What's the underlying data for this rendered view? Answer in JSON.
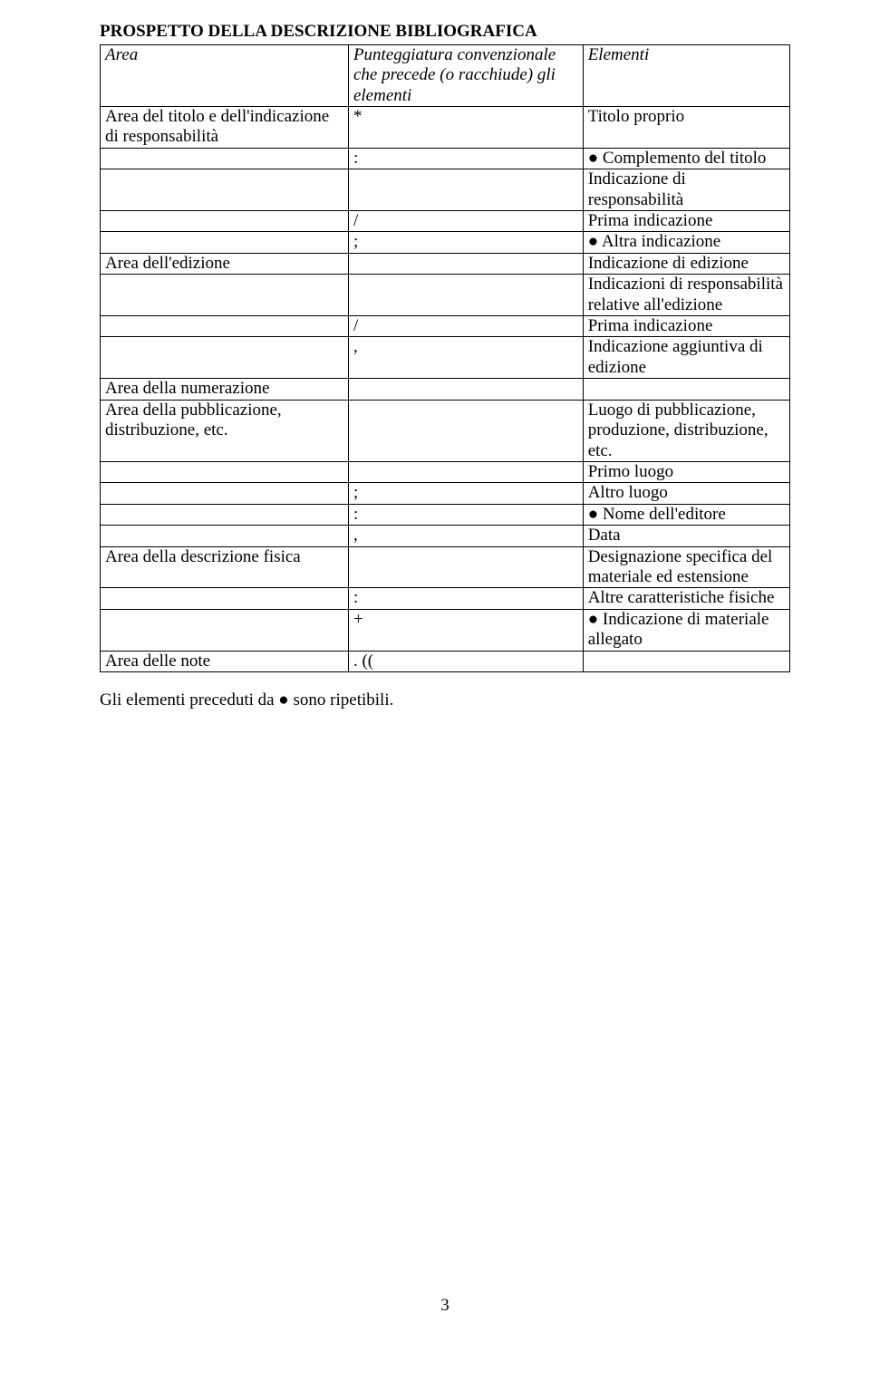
{
  "title": "PROSPETTO DELLA DESCRIZIONE BIBLIOGRAFICA",
  "header": {
    "col0": "Area",
    "col1": "Punteggiatura convenzionale che precede (o racchiude) gli elementi",
    "col2": "Elementi"
  },
  "rows": [
    {
      "c0": "Area del titolo e dell'indicazione di responsabilità",
      "c1": "*",
      "c2": "Titolo proprio"
    },
    {
      "c0": "",
      "c1": ":",
      "c2": "● Complemento del titolo"
    },
    {
      "c0": "",
      "c1": "",
      "c2": "Indicazione di responsabilità"
    },
    {
      "c0": "",
      "c1": "/",
      "c2": "Prima indicazione"
    },
    {
      "c0": "",
      "c1": ";",
      "c2": "● Altra indicazione"
    },
    {
      "c0": "Area dell'edizione",
      "c1": "",
      "c2": "Indicazione di edizione"
    },
    {
      "c0": "",
      "c1": "",
      "c2": "Indicazioni di responsabilità relative all'edizione"
    },
    {
      "c0": "",
      "c1": "/",
      "c2": "Prima indicazione"
    },
    {
      "c0": "",
      "c1": ",",
      "c2": "Indicazione aggiuntiva di edizione"
    },
    {
      "c0": "Area della numerazione",
      "c1": "",
      "c2": ""
    },
    {
      "c0": "Area della pubblicazione, distribuzione, etc.",
      "c1": "",
      "c2": "Luogo di pubblicazione, produzione, distribuzione, etc."
    },
    {
      "c0": "",
      "c1": "",
      "c2": "Primo luogo"
    },
    {
      "c0": "",
      "c1": ";",
      "c2": "Altro luogo"
    },
    {
      "c0": "",
      "c1": ":",
      "c2": "● Nome dell'editore"
    },
    {
      "c0": "",
      "c1": ",",
      "c2": "Data"
    },
    {
      "c0": "Area della descrizione fisica",
      "c1": "",
      "c2": "Designazione specifica del materiale ed estensione"
    },
    {
      "c0": "",
      "c1": ":",
      "c2": "Altre caratteristiche fisiche"
    },
    {
      "c0": "",
      "c1": "+",
      "c2": "● Indicazione di materiale allegato"
    },
    {
      "c0": "Area delle note",
      "c1": ". ((",
      "c2": ""
    }
  ],
  "footer": "Gli elementi preceduti da ● sono ripetibili.",
  "pageNumber": "3"
}
